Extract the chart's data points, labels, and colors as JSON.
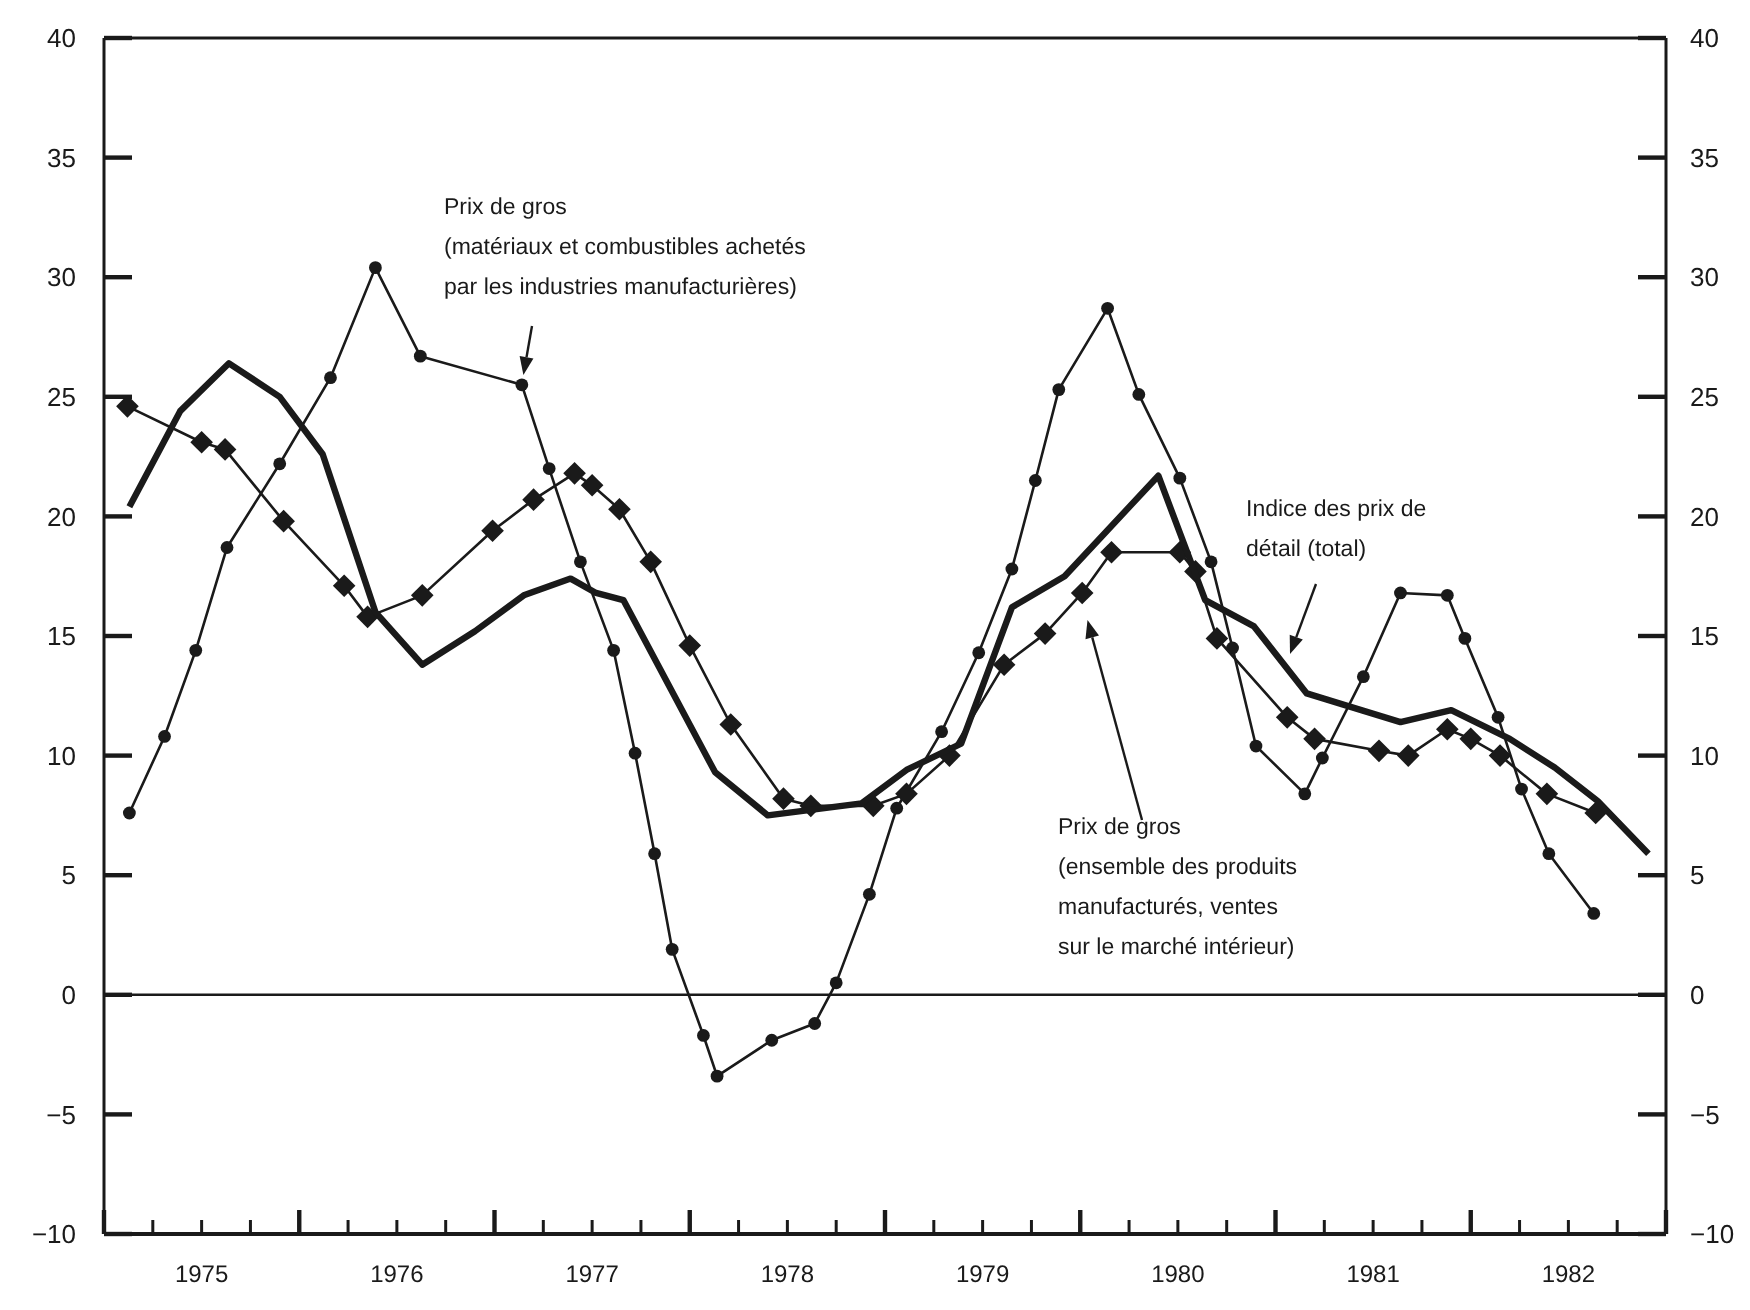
{
  "chart_data": {
    "type": "line",
    "xlim": [
      1975,
      1983
    ],
    "xticks": [
      {
        "value": 1975,
        "label": null
      },
      {
        "value": 1975.25,
        "label": null
      },
      {
        "value": 1975.5,
        "label": "1975"
      },
      {
        "value": 1975.75,
        "label": null
      },
      {
        "value": 1976,
        "label": null
      },
      {
        "value": 1976.25,
        "label": null
      },
      {
        "value": 1976.5,
        "label": "1976"
      },
      {
        "value": 1976.75,
        "label": null
      },
      {
        "value": 1977,
        "label": null
      },
      {
        "value": 1977.25,
        "label": null
      },
      {
        "value": 1977.5,
        "label": "1977"
      },
      {
        "value": 1977.75,
        "label": null
      },
      {
        "value": 1978,
        "label": null
      },
      {
        "value": 1978.25,
        "label": null
      },
      {
        "value": 1978.5,
        "label": "1978"
      },
      {
        "value": 1978.75,
        "label": null
      },
      {
        "value": 1979,
        "label": null
      },
      {
        "value": 1979.25,
        "label": null
      },
      {
        "value": 1979.5,
        "label": "1979"
      },
      {
        "value": 1979.75,
        "label": null
      },
      {
        "value": 1980,
        "label": null
      },
      {
        "value": 1980.25,
        "label": null
      },
      {
        "value": 1980.5,
        "label": "1980"
      },
      {
        "value": 1980.75,
        "label": null
      },
      {
        "value": 1981,
        "label": null
      },
      {
        "value": 1981.25,
        "label": null
      },
      {
        "value": 1981.5,
        "label": "1981"
      },
      {
        "value": 1981.75,
        "label": null
      },
      {
        "value": 1982,
        "label": null
      },
      {
        "value": 1982.25,
        "label": null
      },
      {
        "value": 1982.5,
        "label": "1982"
      },
      {
        "value": 1982.75,
        "label": null
      },
      {
        "value": 1983,
        "label": null
      }
    ],
    "ylim": [
      -10,
      40
    ],
    "yticks": [
      -10,
      -5,
      0,
      5,
      10,
      15,
      20,
      25,
      30,
      35,
      40
    ],
    "y2lim": [
      -10,
      40
    ],
    "y2ticks": [
      -10,
      -5,
      0,
      5,
      10,
      15,
      20,
      25,
      30,
      35,
      40
    ],
    "ref_lines": [
      {
        "axis": "y",
        "value": 0,
        "label": null
      }
    ],
    "series": [
      {
        "color": "#1a1a1a",
        "marker": "circle",
        "x": [
          1975.13,
          1975.31,
          1975.47,
          1975.63,
          1975.9,
          1976.16,
          1976.39,
          1976.62,
          1977.14,
          1977.28,
          1977.44,
          1977.61,
          1977.72,
          1977.82,
          1977.91,
          1978.07,
          1978.14,
          1978.42,
          1978.64,
          1978.75,
          1978.92,
          1979.06,
          1979.29,
          1979.48,
          1979.65,
          1979.77,
          1979.89,
          1980.14,
          1980.3,
          1980.51,
          1980.67,
          1980.78,
          1980.9,
          1981.15,
          1981.24,
          1981.45,
          1981.64,
          1981.88,
          1981.97,
          1982.14,
          1982.26,
          1982.4,
          1982.63
        ],
        "values": [
          7.6,
          10.8,
          14.4,
          18.7,
          22.2,
          25.8,
          30.4,
          26.7,
          25.5,
          22.0,
          18.1,
          14.4,
          10.1,
          5.9,
          1.9,
          -1.7,
          -3.4,
          -1.9,
          -1.2,
          0.5,
          4.2,
          7.8,
          11.0,
          14.3,
          17.8,
          21.5,
          25.3,
          28.7,
          25.1,
          21.6,
          18.1,
          14.5,
          10.4,
          8.4,
          9.9,
          13.3,
          16.8,
          16.7,
          14.9,
          11.6,
          8.6,
          5.9,
          3.4
        ]
      },
      {
        "color": "#1a1a1a",
        "marker": "diamond",
        "x": [
          1975.12,
          1975.5,
          1975.62,
          1975.92,
          1976.23,
          1976.35,
          1976.63,
          1976.99,
          1977.2,
          1977.41,
          1977.5,
          1977.64,
          1977.8,
          1978.0,
          1978.21,
          1978.48,
          1978.62,
          1978.94,
          1979.11,
          1979.33,
          1979.61,
          1979.82,
          1980.01,
          1980.16,
          1980.51,
          1980.59,
          1980.7,
          1981.06,
          1981.2,
          1981.53,
          1981.68,
          1981.88,
          1982.0,
          1982.15,
          1982.39,
          1982.64
        ],
        "values": [
          24.6,
          23.1,
          22.8,
          19.8,
          17.1,
          15.8,
          16.7,
          19.4,
          20.7,
          21.8,
          21.3,
          20.3,
          18.1,
          14.6,
          11.3,
          8.2,
          7.9,
          7.9,
          8.4,
          10.0,
          13.8,
          15.1,
          16.8,
          18.5,
          18.5,
          17.7,
          14.9,
          11.6,
          10.7,
          10.2,
          10.0,
          11.1,
          10.7,
          10.0,
          8.4,
          7.6
        ]
      },
      {
        "color": "#1a1a1a",
        "marker": "none",
        "x": [
          1975.13,
          1975.39,
          1975.64,
          1975.9,
          1976.12,
          1976.39,
          1976.63,
          1976.9,
          1977.15,
          1977.39,
          1977.52,
          1977.66,
          1978.13,
          1978.4,
          1978.88,
          1979.11,
          1979.39,
          1979.65,
          1979.92,
          1980.4,
          1980.64,
          1980.89,
          1981.16,
          1981.36,
          1981.64,
          1981.9,
          1982.2,
          1982.43,
          1982.65,
          1982.91
        ],
        "values": [
          20.4,
          24.4,
          26.4,
          25.0,
          22.6,
          16.0,
          13.8,
          15.2,
          16.7,
          17.4,
          16.8,
          16.5,
          9.3,
          7.5,
          8.0,
          9.4,
          10.5,
          16.2,
          17.5,
          21.7,
          16.5,
          15.4,
          12.6,
          12.1,
          11.4,
          11.9,
          10.7,
          9.5,
          8.1,
          5.9
        ]
      }
    ],
    "annotations": [
      "Prix de gros\n(matériaux et combustibles achetés\npar les industries manufacturières)",
      "Indice des prix de\ndétail (total)",
      "Prix de gros\n(ensemble des produits\nmanufacturés, ventes\nsur le marché intérieur)"
    ]
  }
}
